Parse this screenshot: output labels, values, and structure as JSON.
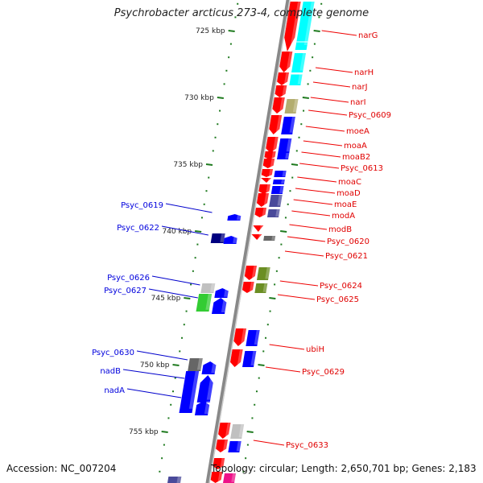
{
  "title": "Psychrobacter arcticus 273-4, complete genome",
  "footer": {
    "accession": "Accession: NC_007204",
    "summary": "Topology: circular; Length: 2,650,701 bp; Genes: 2,183"
  },
  "colors": {
    "backbone": "#888888",
    "tick": "#1e7a1e",
    "forward_label": "#e00000",
    "reverse_label": "#0000dd",
    "red_gene": "#ff0000",
    "blue_gene": "#0000ff",
    "cyan_gene": "#00ffff",
    "khaki_gene": "#b3ad6f",
    "slate_gene": "#4a4a9a",
    "navy_gene": "#000080",
    "olive_gene": "#6b8e23",
    "green_gene": "#33cc33",
    "gray_gene": "#666666",
    "lightgray_gene": "#c0c0c0"
  },
  "scale": {
    "ticks": [
      {
        "label": "725 kbp"
      },
      {
        "label": "730 kbp"
      },
      {
        "label": "735 kbp"
      },
      {
        "label": "740 kbp"
      },
      {
        "label": "745 kbp"
      },
      {
        "label": "750 kbp"
      },
      {
        "label": "755 kbp"
      }
    ]
  },
  "labels": {
    "forward": [
      "narG",
      "narH",
      "narJ",
      "narI",
      "Psyc_0609",
      "moeA",
      "moaA",
      "moaB2",
      "Psyc_0613",
      "moaC",
      "moaD",
      "moaE",
      "modA",
      "modB",
      "Psyc_0620",
      "Psyc_0621",
      "Psyc_0624",
      "Psyc_0625",
      "ubiH",
      "Psyc_0629",
      "Psyc_0633"
    ],
    "reverse": [
      "Psyc_0619",
      "Psyc_0622",
      "Psyc_0626",
      "Psyc_0627",
      "Psyc_0630",
      "nadB",
      "nadA"
    ]
  }
}
